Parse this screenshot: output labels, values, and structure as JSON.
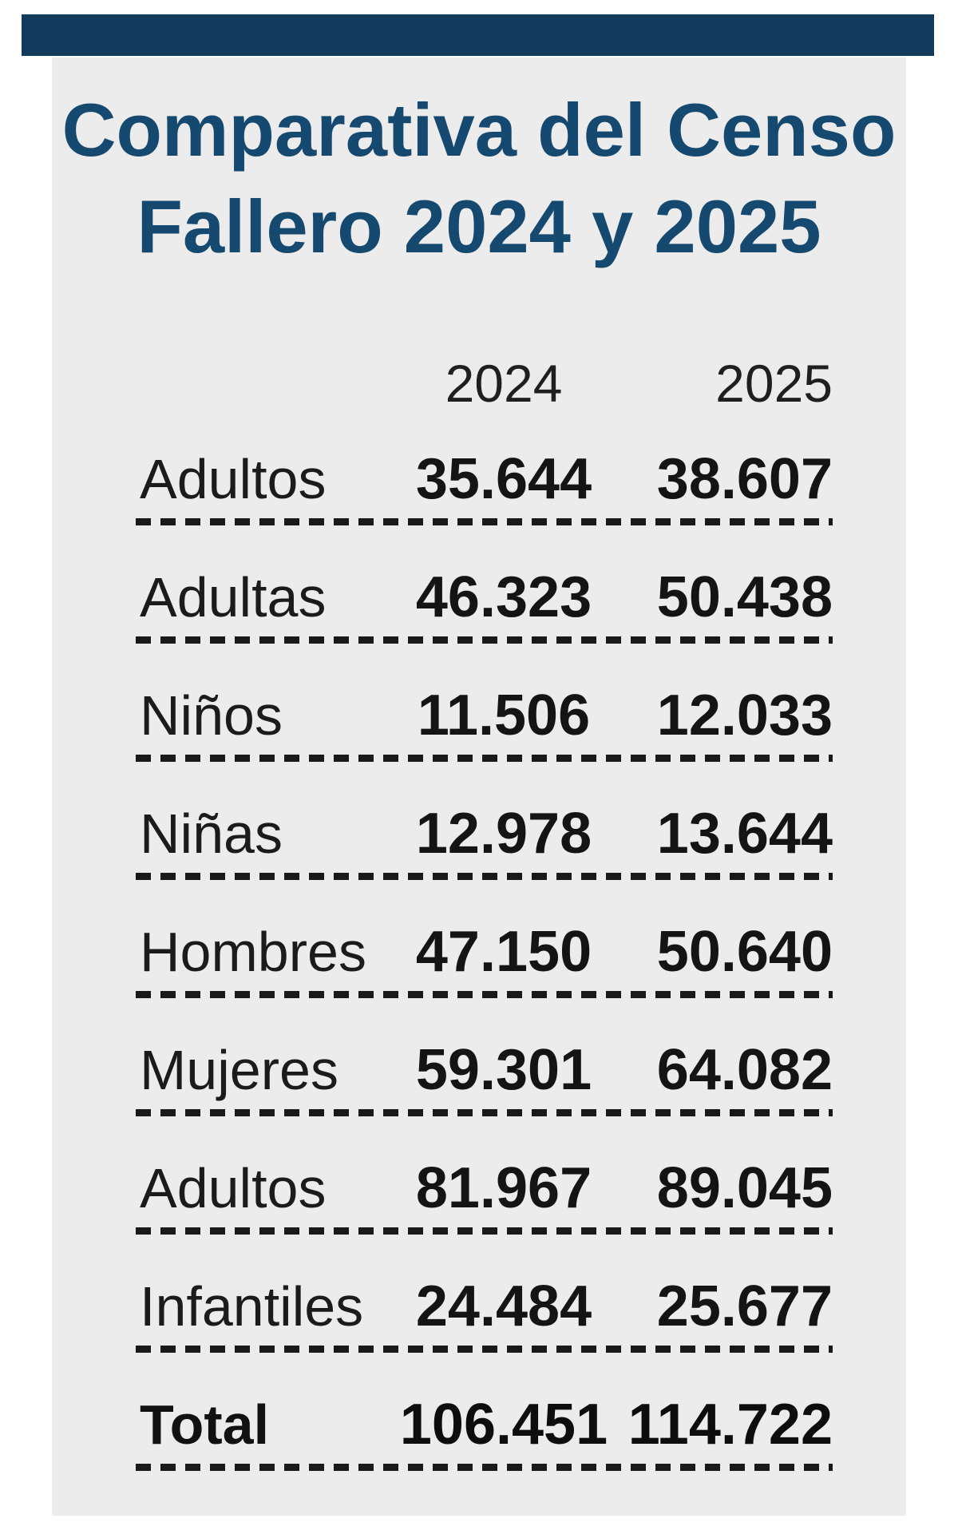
{
  "page": {
    "background_color": "#ffffff",
    "top_bar_color": "#113a5d",
    "panel_color": "#ececec",
    "text_color": "#1b1b1b"
  },
  "title": {
    "line1": "Comparativa del Censo",
    "line2": "Fallero 2024 y 2025",
    "color": "#15496f"
  },
  "chart_data": {
    "type": "table",
    "title": "Comparativa del Censo Fallero 2024 y 2025",
    "columns": [
      "2024",
      "2025"
    ],
    "rows": [
      {
        "label": "Adultos",
        "y2024": "35.644",
        "y2025": "38.607",
        "v2024": 35644,
        "v2025": 38607
      },
      {
        "label": "Adultas",
        "y2024": "46.323",
        "y2025": "50.438",
        "v2024": 46323,
        "v2025": 50438
      },
      {
        "label": "Niños",
        "y2024": "11.506",
        "y2025": "12.033",
        "v2024": 11506,
        "v2025": 12033
      },
      {
        "label": "Niñas",
        "y2024": "12.978",
        "y2025": "13.644",
        "v2024": 12978,
        "v2025": 13644
      },
      {
        "label": "Hombres",
        "y2024": "47.150",
        "y2025": "50.640",
        "v2024": 47150,
        "v2025": 50640
      },
      {
        "label": "Mujeres",
        "y2024": "59.301",
        "y2025": "64.082",
        "v2024": 59301,
        "v2025": 64082
      },
      {
        "label": "Adultos",
        "y2024": "81.967",
        "y2025": "89.045",
        "v2024": 81967,
        "v2025": 89045
      },
      {
        "label": "Infantiles",
        "y2024": "24.484",
        "y2025": "25.677",
        "v2024": 24484,
        "v2025": 25677
      },
      {
        "label": "Total",
        "y2024": "106.451",
        "y2025": "114.722",
        "v2024": 106451,
        "v2025": 114722,
        "is_total": true
      }
    ]
  }
}
